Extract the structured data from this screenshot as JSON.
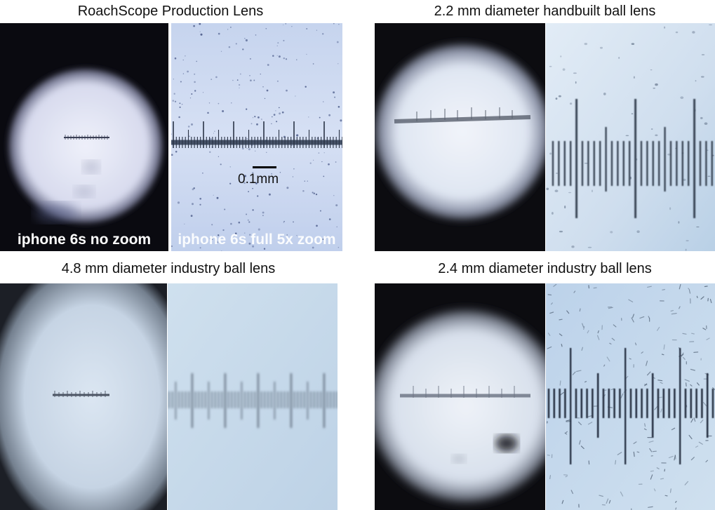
{
  "panels": [
    {
      "title": "RoachScope Production Lens",
      "images": [
        {
          "label": "iphone 6s no zoom"
        },
        {
          "label": "iphone 6s full 5x zoom",
          "scale_label": "0.1mm"
        }
      ]
    },
    {
      "title": "2.2 mm diameter handbuilt ball lens",
      "images": [
        {
          "label": ""
        },
        {
          "label": ""
        }
      ]
    },
    {
      "title": "4.8 mm diameter industry ball lens",
      "images": [
        {
          "label": ""
        },
        {
          "label": ""
        }
      ]
    },
    {
      "title": "2.4 mm diameter industry ball lens",
      "images": [
        {
          "label": ""
        },
        {
          "label": ""
        }
      ]
    }
  ],
  "colors": {
    "dark_vignette": "#0a0a10",
    "field_light": "#e8eef8",
    "field_blue": "#bcd4ec",
    "ruler": "#3a4450"
  }
}
